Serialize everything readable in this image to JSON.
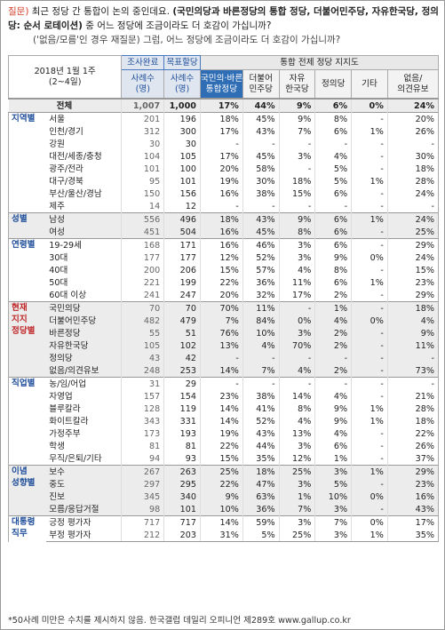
{
  "header": {
    "question_label": "질문)",
    "question_parts": [
      {
        "text": "최근 정당 간 통합이 논의 중인데요.",
        "bold": false
      },
      {
        "text": "(국민의당과 바른정당의 통합 정당, 더불어민주당, 자유한국당, 정의당: 순서 로테이션)",
        "bold": true
      },
      {
        "text": "중 어느 정당에 조금이라도 더 호감이 가십니까?",
        "bold": false
      }
    ],
    "subquestion": "('없음/모름'인 경우 재질문) 그럼, 어느 정당에 조금이라도 더 호감이 가십니까?"
  },
  "table": {
    "period": [
      "2018년 1월 1주",
      "(2~4일)"
    ],
    "sample_columns": [
      {
        "title": "조사완료",
        "sub": [
          "사례수",
          "(명)"
        ]
      },
      {
        "title": "목표할당",
        "sub": [
          "사례수",
          "(명)"
        ]
      }
    ],
    "party_group": "통합 전제 정당 지지도",
    "parties": [
      [
        "국민의·바른",
        "통합정당"
      ],
      [
        "더불어",
        "민주당"
      ],
      [
        "자유",
        "한국당"
      ],
      [
        "정의당"
      ],
      [
        "기타"
      ],
      [
        "없음/",
        "의견유보"
      ]
    ],
    "total": {
      "label": "전체",
      "cells": [
        "1,007",
        "1,000",
        "17%",
        "44%",
        "9%",
        "6%",
        "0%",
        "24%"
      ]
    },
    "groups": [
      {
        "name": [
          "지역별"
        ],
        "rows": [
          {
            "label": "서울",
            "cells": [
              "201",
              "196",
              "18%",
              "45%",
              "9%",
              "8%",
              "-",
              "20%"
            ]
          },
          {
            "label": "인천/경기",
            "cells": [
              "312",
              "300",
              "17%",
              "43%",
              "7%",
              "6%",
              "1%",
              "26%"
            ]
          },
          {
            "label": "강원",
            "cells": [
              "30",
              "30",
              "-",
              "-",
              "-",
              "-",
              "-",
              "-"
            ]
          },
          {
            "label": "대전/세종/충청",
            "cells": [
              "104",
              "105",
              "17%",
              "45%",
              "3%",
              "4%",
              "-",
              "30%"
            ]
          },
          {
            "label": "광주/전라",
            "cells": [
              "101",
              "100",
              "20%",
              "58%",
              "-",
              "5%",
              "-",
              "18%"
            ]
          },
          {
            "label": "대구/경북",
            "cells": [
              "95",
              "101",
              "19%",
              "30%",
              "18%",
              "5%",
              "1%",
              "28%"
            ]
          },
          {
            "label": "부산/울산/경남",
            "cells": [
              "150",
              "156",
              "16%",
              "38%",
              "15%",
              "6%",
              "-",
              "24%"
            ]
          },
          {
            "label": "제주",
            "cells": [
              "14",
              "12",
              "-",
              "-",
              "-",
              "-",
              "-",
              "-"
            ]
          }
        ]
      },
      {
        "name": [
          "성별"
        ],
        "rows": [
          {
            "label": "남성",
            "cells": [
              "556",
              "496",
              "18%",
              "43%",
              "9%",
              "6%",
              "1%",
              "24%"
            ]
          },
          {
            "label": "여성",
            "cells": [
              "451",
              "504",
              "16%",
              "45%",
              "8%",
              "6%",
              "-",
              "25%"
            ]
          }
        ]
      },
      {
        "name": [
          "연령별"
        ],
        "rows": [
          {
            "label": "19-29세",
            "cells": [
              "168",
              "171",
              "16%",
              "46%",
              "3%",
              "6%",
              "-",
              "29%"
            ]
          },
          {
            "label": "30대",
            "cells": [
              "177",
              "177",
              "12%",
              "52%",
              "3%",
              "9%",
              "0%",
              "24%"
            ]
          },
          {
            "label": "40대",
            "cells": [
              "200",
              "206",
              "15%",
              "57%",
              "4%",
              "8%",
              "-",
              "15%"
            ]
          },
          {
            "label": "50대",
            "cells": [
              "221",
              "199",
              "22%",
              "36%",
              "11%",
              "6%",
              "1%",
              "23%"
            ]
          },
          {
            "label": "60대 이상",
            "cells": [
              "241",
              "247",
              "20%",
              "32%",
              "17%",
              "2%",
              "-",
              "29%"
            ]
          }
        ]
      },
      {
        "name": [
          "현재",
          "지지",
          "정당별"
        ],
        "red": true,
        "rows": [
          {
            "label": "국민의당",
            "cells": [
              "70",
              "70",
              "70%",
              "11%",
              "-",
              "1%",
              "-",
              "18%"
            ]
          },
          {
            "label": "더불어민주당",
            "cells": [
              "482",
              "479",
              "7%",
              "84%",
              "0%",
              "4%",
              "0%",
              "4%"
            ]
          },
          {
            "label": "바른정당",
            "cells": [
              "55",
              "51",
              "76%",
              "10%",
              "3%",
              "2%",
              "-",
              "9%"
            ]
          },
          {
            "label": "자유한국당",
            "cells": [
              "105",
              "102",
              "13%",
              "4%",
              "70%",
              "2%",
              "-",
              "11%"
            ]
          },
          {
            "label": "정의당",
            "cells": [
              "43",
              "42",
              "-",
              "-",
              "-",
              "-",
              "-",
              "-"
            ]
          },
          {
            "label": "없음/의견유보",
            "cells": [
              "248",
              "253",
              "14%",
              "7%",
              "4%",
              "2%",
              "-",
              "73%"
            ]
          }
        ]
      },
      {
        "name": [
          "직업별"
        ],
        "rows": [
          {
            "label": "농/임/어업",
            "cells": [
              "31",
              "29",
              "-",
              "-",
              "-",
              "-",
              "-",
              "-"
            ]
          },
          {
            "label": "자영업",
            "cells": [
              "157",
              "154",
              "23%",
              "38%",
              "14%",
              "4%",
              "-",
              "21%"
            ]
          },
          {
            "label": "블루칼라",
            "cells": [
              "128",
              "119",
              "14%",
              "41%",
              "8%",
              "9%",
              "1%",
              "28%"
            ]
          },
          {
            "label": "화이트칼라",
            "cells": [
              "343",
              "331",
              "14%",
              "52%",
              "4%",
              "9%",
              "1%",
              "18%"
            ]
          },
          {
            "label": "가정주부",
            "cells": [
              "173",
              "193",
              "19%",
              "43%",
              "13%",
              "4%",
              "-",
              "22%"
            ]
          },
          {
            "label": "학생",
            "cells": [
              "81",
              "81",
              "22%",
              "44%",
              "3%",
              "6%",
              "-",
              "26%"
            ]
          },
          {
            "label": "무직/은퇴/기타",
            "cells": [
              "94",
              "93",
              "15%",
              "35%",
              "12%",
              "1%",
              "-",
              "37%"
            ]
          }
        ]
      },
      {
        "name": [
          "이념",
          "성향별"
        ],
        "rows": [
          {
            "label": "보수",
            "cells": [
              "267",
              "263",
              "25%",
              "18%",
              "25%",
              "3%",
              "1%",
              "29%"
            ]
          },
          {
            "label": "중도",
            "cells": [
              "297",
              "295",
              "22%",
              "47%",
              "3%",
              "5%",
              "-",
              "23%"
            ]
          },
          {
            "label": "진보",
            "cells": [
              "345",
              "340",
              "9%",
              "63%",
              "1%",
              "10%",
              "0%",
              "16%"
            ]
          },
          {
            "label": "모름/응답거절",
            "cells": [
              "98",
              "101",
              "10%",
              "36%",
              "7%",
              "3%",
              "-",
              "43%"
            ]
          }
        ]
      },
      {
        "name": [
          "대통령",
          "직무"
        ],
        "rows": [
          {
            "label": "긍정 평가자",
            "cells": [
              "717",
              "717",
              "14%",
              "59%",
              "3%",
              "7%",
              "0%",
              "17%"
            ]
          },
          {
            "label": "부정 평가자",
            "cells": [
              "212",
              "203",
              "31%",
              "5%",
              "25%",
              "3%",
              "1%",
              "35%"
            ]
          }
        ]
      }
    ]
  },
  "footer": "*50사례 미만은 수치를 제시하지 않음. 한국갤럽 데일리 오피니언 제289호 www.gallup.co.kr"
}
